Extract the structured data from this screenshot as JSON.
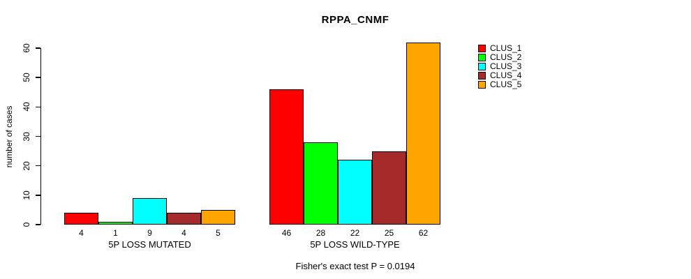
{
  "chart_data": {
    "type": "bar",
    "title": "RPPA_CNMF",
    "ylabel": "number of cases",
    "ylim": [
      0,
      60
    ],
    "yticks": [
      0,
      10,
      20,
      30,
      40,
      50,
      60
    ],
    "grid": false,
    "groups": [
      {
        "label": "5P LOSS MUTATED",
        "values": [
          4,
          1,
          9,
          4,
          5
        ]
      },
      {
        "label": "5P LOSS WILD-TYPE",
        "values": [
          46,
          28,
          22,
          25,
          62
        ]
      }
    ],
    "series_colors": [
      "#FF0000",
      "#00FF00",
      "#00FFFF",
      "#A52A2A",
      "#FFA500"
    ],
    "legend": {
      "position": "right",
      "entries": [
        {
          "label": "CLUS_1",
          "color": "#FF0000"
        },
        {
          "label": "CLUS_2",
          "color": "#00FF00"
        },
        {
          "label": "CLUS_3",
          "color": "#00FFFF"
        },
        {
          "label": "CLUS_4",
          "color": "#A52A2A"
        },
        {
          "label": "CLUS_5",
          "color": "#FFA500"
        }
      ]
    },
    "footnote": "Fisher's exact test P = 0.0194"
  }
}
